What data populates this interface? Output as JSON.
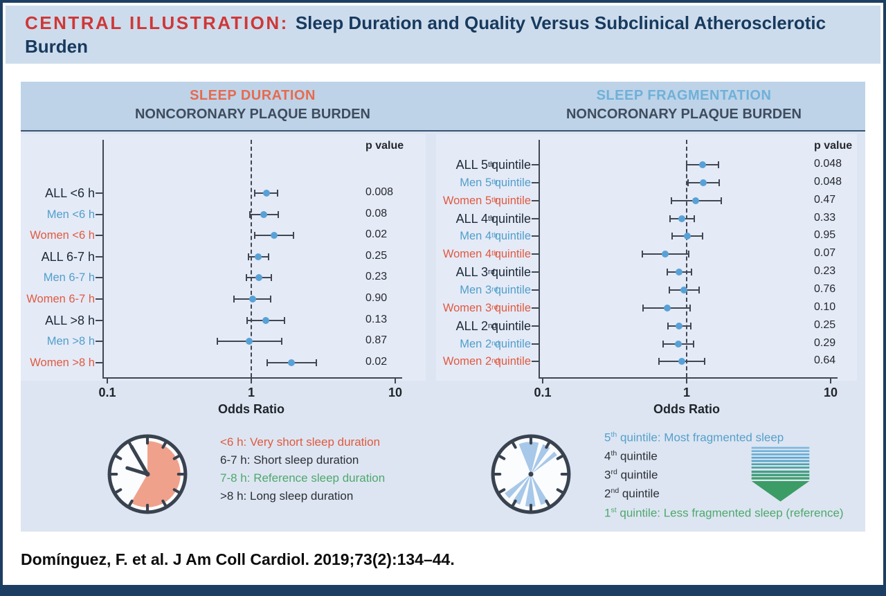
{
  "header": {
    "label": "CENTRAL ILLUSTRATION:",
    "title": "Sleep Duration and Quality Versus Subclinical Atherosclerotic Burden"
  },
  "colors": {
    "border_navy": "#1c3e63",
    "banner_bg": "#cddcec",
    "banner_label": "#cf3737",
    "banner_title": "#173a5e",
    "panel_bg": "#dde5f2",
    "panel_header_bg": "#bed3e8",
    "chart_bg": "#e5eaf7",
    "title_duration": "#e76a4f",
    "title_fragmentation": "#6fb0d9",
    "subtitle": "#3e4c5e",
    "label_all": "#1c2937",
    "label_men": "#4f9fca",
    "label_women": "#e05a3f",
    "marker": "#58a1d6",
    "green": "#4fa86c"
  },
  "chart_data": [
    {
      "type": "scatter",
      "subtype": "forest-plot",
      "title": "SLEEP DURATION",
      "subtitle": "NONCORONARY PLAQUE BURDEN",
      "xlabel": "Odds Ratio",
      "xscale": "log",
      "xlim": [
        0.1,
        10
      ],
      "xticks": [
        "0.1",
        "1",
        "10"
      ],
      "reference_line": 1,
      "p_header": "p value",
      "rows": [
        {
          "label": "ALL <6 h",
          "group": "all",
          "or": 1.27,
          "ci_low": 1.06,
          "ci_high": 1.52,
          "p": "0.008"
        },
        {
          "label": "Men <6 h",
          "group": "men",
          "or": 1.22,
          "ci_low": 0.98,
          "ci_high": 1.54,
          "p": "0.08"
        },
        {
          "label": "Women <6 h",
          "group": "women",
          "or": 1.44,
          "ci_low": 1.06,
          "ci_high": 1.97,
          "p": "0.02"
        },
        {
          "label": "ALL 6-7 h",
          "group": "all",
          "or": 1.12,
          "ci_low": 0.96,
          "ci_high": 1.32,
          "p": "0.25"
        },
        {
          "label": "Men 6-7 h",
          "group": "men",
          "or": 1.13,
          "ci_low": 0.93,
          "ci_high": 1.38,
          "p": "0.23"
        },
        {
          "label": "Women 6-7 h",
          "group": "women",
          "or": 1.02,
          "ci_low": 0.76,
          "ci_high": 1.36,
          "p": "0.90"
        },
        {
          "label": "ALL >8 h",
          "group": "all",
          "or": 1.26,
          "ci_low": 0.94,
          "ci_high": 1.7,
          "p": "0.13"
        },
        {
          "label": "Men >8 h",
          "group": "men",
          "or": 0.97,
          "ci_low": 0.58,
          "ci_high": 1.62,
          "p": "0.87"
        },
        {
          "label": "Women >8 h",
          "group": "women",
          "or": 1.91,
          "ci_low": 1.29,
          "ci_high": 2.83,
          "p": "0.02"
        }
      ]
    },
    {
      "type": "scatter",
      "subtype": "forest-plot",
      "title": "SLEEP FRAGMENTATION",
      "subtitle": "NONCORONARY PLAQUE BURDEN",
      "xlabel": "Odds Ratio",
      "xscale": "log",
      "xlim": [
        0.1,
        10
      ],
      "xticks": [
        "0.1",
        "1",
        "10"
      ],
      "reference_line": 1,
      "p_header": "p value",
      "rows": [
        {
          "label": "ALL 5^{th} quintile",
          "group": "all",
          "or": 1.29,
          "ci_low": 1.0,
          "ci_high": 1.66,
          "p": "0.048"
        },
        {
          "label": "Men 5^{th} quintile",
          "group": "men",
          "or": 1.31,
          "ci_low": 1.02,
          "ci_high": 1.69,
          "p": "0.048"
        },
        {
          "label": "Women 5^{th} quintile",
          "group": "women",
          "or": 1.16,
          "ci_low": 0.78,
          "ci_high": 1.73,
          "p": "0.47"
        },
        {
          "label": "ALL 4^{th} quintile",
          "group": "all",
          "or": 0.93,
          "ci_low": 0.77,
          "ci_high": 1.13,
          "p": "0.33"
        },
        {
          "label": "Men 4^{th} quintile",
          "group": "men",
          "or": 1.01,
          "ci_low": 0.79,
          "ci_high": 1.29,
          "p": "0.95"
        },
        {
          "label": "Women 4^{th} quintile",
          "group": "women",
          "or": 0.71,
          "ci_low": 0.49,
          "ci_high": 1.03,
          "p": "0.07"
        },
        {
          "label": "ALL 3^{rd} quintile",
          "group": "all",
          "or": 0.89,
          "ci_low": 0.73,
          "ci_high": 1.08,
          "p": "0.23"
        },
        {
          "label": "Men 3^{rd} quintile",
          "group": "men",
          "or": 0.96,
          "ci_low": 0.76,
          "ci_high": 1.22,
          "p": "0.76"
        },
        {
          "label": "Women 3^{rd} quintile",
          "group": "women",
          "or": 0.73,
          "ci_low": 0.5,
          "ci_high": 1.06,
          "p": "0.10"
        },
        {
          "label": "ALL 2^{nd} quintile",
          "group": "all",
          "or": 0.89,
          "ci_low": 0.74,
          "ci_high": 1.07,
          "p": "0.25"
        },
        {
          "label": "Men 2^{nd} quintile",
          "group": "men",
          "or": 0.88,
          "ci_low": 0.69,
          "ci_high": 1.12,
          "p": "0.29"
        },
        {
          "label": "Women 2^{nd} quintile",
          "group": "women",
          "or": 0.93,
          "ci_low": 0.64,
          "ci_high": 1.34,
          "p": "0.64"
        }
      ]
    }
  ],
  "legends": {
    "sleep_duration": {
      "icon": "clock-icon",
      "items": [
        {
          "text": "<6 h: Very short sleep duration",
          "color": "#df5a3e"
        },
        {
          "text": "6-7 h: Short sleep duration",
          "color": "#2c3036"
        },
        {
          "text": "7-8 h: Reference sleep duration",
          "color": "#4fa86c"
        },
        {
          "text": ">8 h: Long sleep duration",
          "color": "#2c3036"
        }
      ]
    },
    "sleep_fragmentation": {
      "icon": "clock-icon",
      "arrow_icon": "gradient-arrow-icon",
      "items": [
        {
          "text": "5^{th} quintile: Most fragmented sleep",
          "color": "#55a0cb"
        },
        {
          "text": "4^{th} quintile",
          "color": "#2c3036"
        },
        {
          "text": "3^{rd} quintile",
          "color": "#2c3036"
        },
        {
          "text": "2^{nd} quintile",
          "color": "#2c3036"
        },
        {
          "text": "1^{st} quintile: Less fragmented sleep (reference)",
          "color": "#4fa86c"
        }
      ]
    }
  },
  "citation": "Domínguez, F. et al. J Am Coll Cardiol. 2019;73(2):134–44."
}
